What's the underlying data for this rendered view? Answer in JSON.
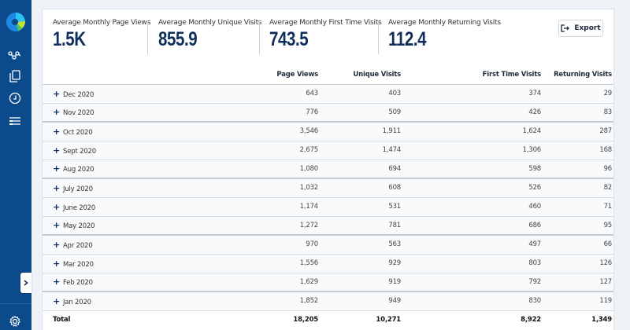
{
  "sidebar": {
    "icons": [
      "app-logo",
      "network-icon",
      "copy-icon",
      "clock-icon",
      "list-icon",
      "chevron-right-icon",
      "gear-icon"
    ]
  },
  "stats": [
    {
      "label": "Average Monthly Page Views",
      "value": "1.5K"
    },
    {
      "label": "Average Monthly Unique Visits",
      "value": "855.9"
    },
    {
      "label": "Average Monthly First Time Visits",
      "value": "743.5"
    },
    {
      "label": "Average Monthly Returning Visits",
      "value": "112.4"
    }
  ],
  "export_label": "Export",
  "table": {
    "headers": [
      "",
      "Page Views",
      "Unique Visits",
      "First Time Visits",
      "Returning Visits"
    ],
    "rows": [
      {
        "month": "Dec 2020",
        "page_views": "643",
        "unique": "403",
        "first": "374",
        "returning": "29"
      },
      {
        "month": "Nov 2020",
        "page_views": "776",
        "unique": "509",
        "first": "426",
        "returning": "83"
      },
      {
        "month": "Oct 2020",
        "page_views": "3,546",
        "unique": "1,911",
        "first": "1,624",
        "returning": "287"
      },
      {
        "month": "Sept 2020",
        "page_views": "2,675",
        "unique": "1,474",
        "first": "1,306",
        "returning": "168"
      },
      {
        "month": "Aug 2020",
        "page_views": "1,080",
        "unique": "694",
        "first": "598",
        "returning": "96"
      },
      {
        "month": "July 2020",
        "page_views": "1,032",
        "unique": "608",
        "first": "526",
        "returning": "82"
      },
      {
        "month": "June 2020",
        "page_views": "1,174",
        "unique": "531",
        "first": "460",
        "returning": "71"
      },
      {
        "month": "May 2020",
        "page_views": "1,272",
        "unique": "781",
        "first": "686",
        "returning": "95"
      },
      {
        "month": "Apr 2020",
        "page_views": "970",
        "unique": "563",
        "first": "497",
        "returning": "66"
      },
      {
        "month": "Mar 2020",
        "page_views": "1,556",
        "unique": "929",
        "first": "803",
        "returning": "126"
      },
      {
        "month": "Feb 2020",
        "page_views": "1,629",
        "unique": "919",
        "first": "792",
        "returning": "127"
      },
      {
        "month": "Jan 2020",
        "page_views": "1,852",
        "unique": "949",
        "first": "830",
        "returning": "119"
      }
    ],
    "total": {
      "label": "Total",
      "page_views": "18,205",
      "unique": "10,271",
      "first": "8,922",
      "returning": "1,349"
    }
  }
}
